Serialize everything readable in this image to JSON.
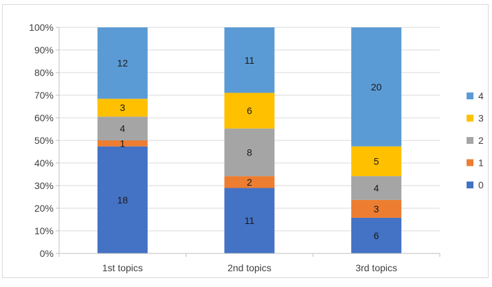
{
  "chart_data": {
    "type": "bar",
    "stacked": true,
    "percent": true,
    "categories": [
      "1st topics",
      "2nd topics",
      "3rd topics"
    ],
    "series": [
      {
        "name": "0",
        "color": "#4472C4",
        "values": [
          18,
          11,
          6
        ]
      },
      {
        "name": "1",
        "color": "#ED7D31",
        "values": [
          1,
          2,
          3
        ]
      },
      {
        "name": "2",
        "color": "#A5A5A5",
        "values": [
          4,
          8,
          4
        ]
      },
      {
        "name": "3",
        "color": "#FFC000",
        "values": [
          3,
          6,
          5
        ]
      },
      {
        "name": "4",
        "color": "#5B9BD5",
        "values": [
          12,
          11,
          20
        ]
      }
    ],
    "y_ticks": [
      "0%",
      "10%",
      "20%",
      "30%",
      "40%",
      "50%",
      "60%",
      "70%",
      "80%",
      "90%",
      "100%"
    ],
    "ylim": [
      0,
      100
    ],
    "grid": true,
    "legend_position": "right",
    "title": "",
    "xlabel": "",
    "ylabel": ""
  }
}
